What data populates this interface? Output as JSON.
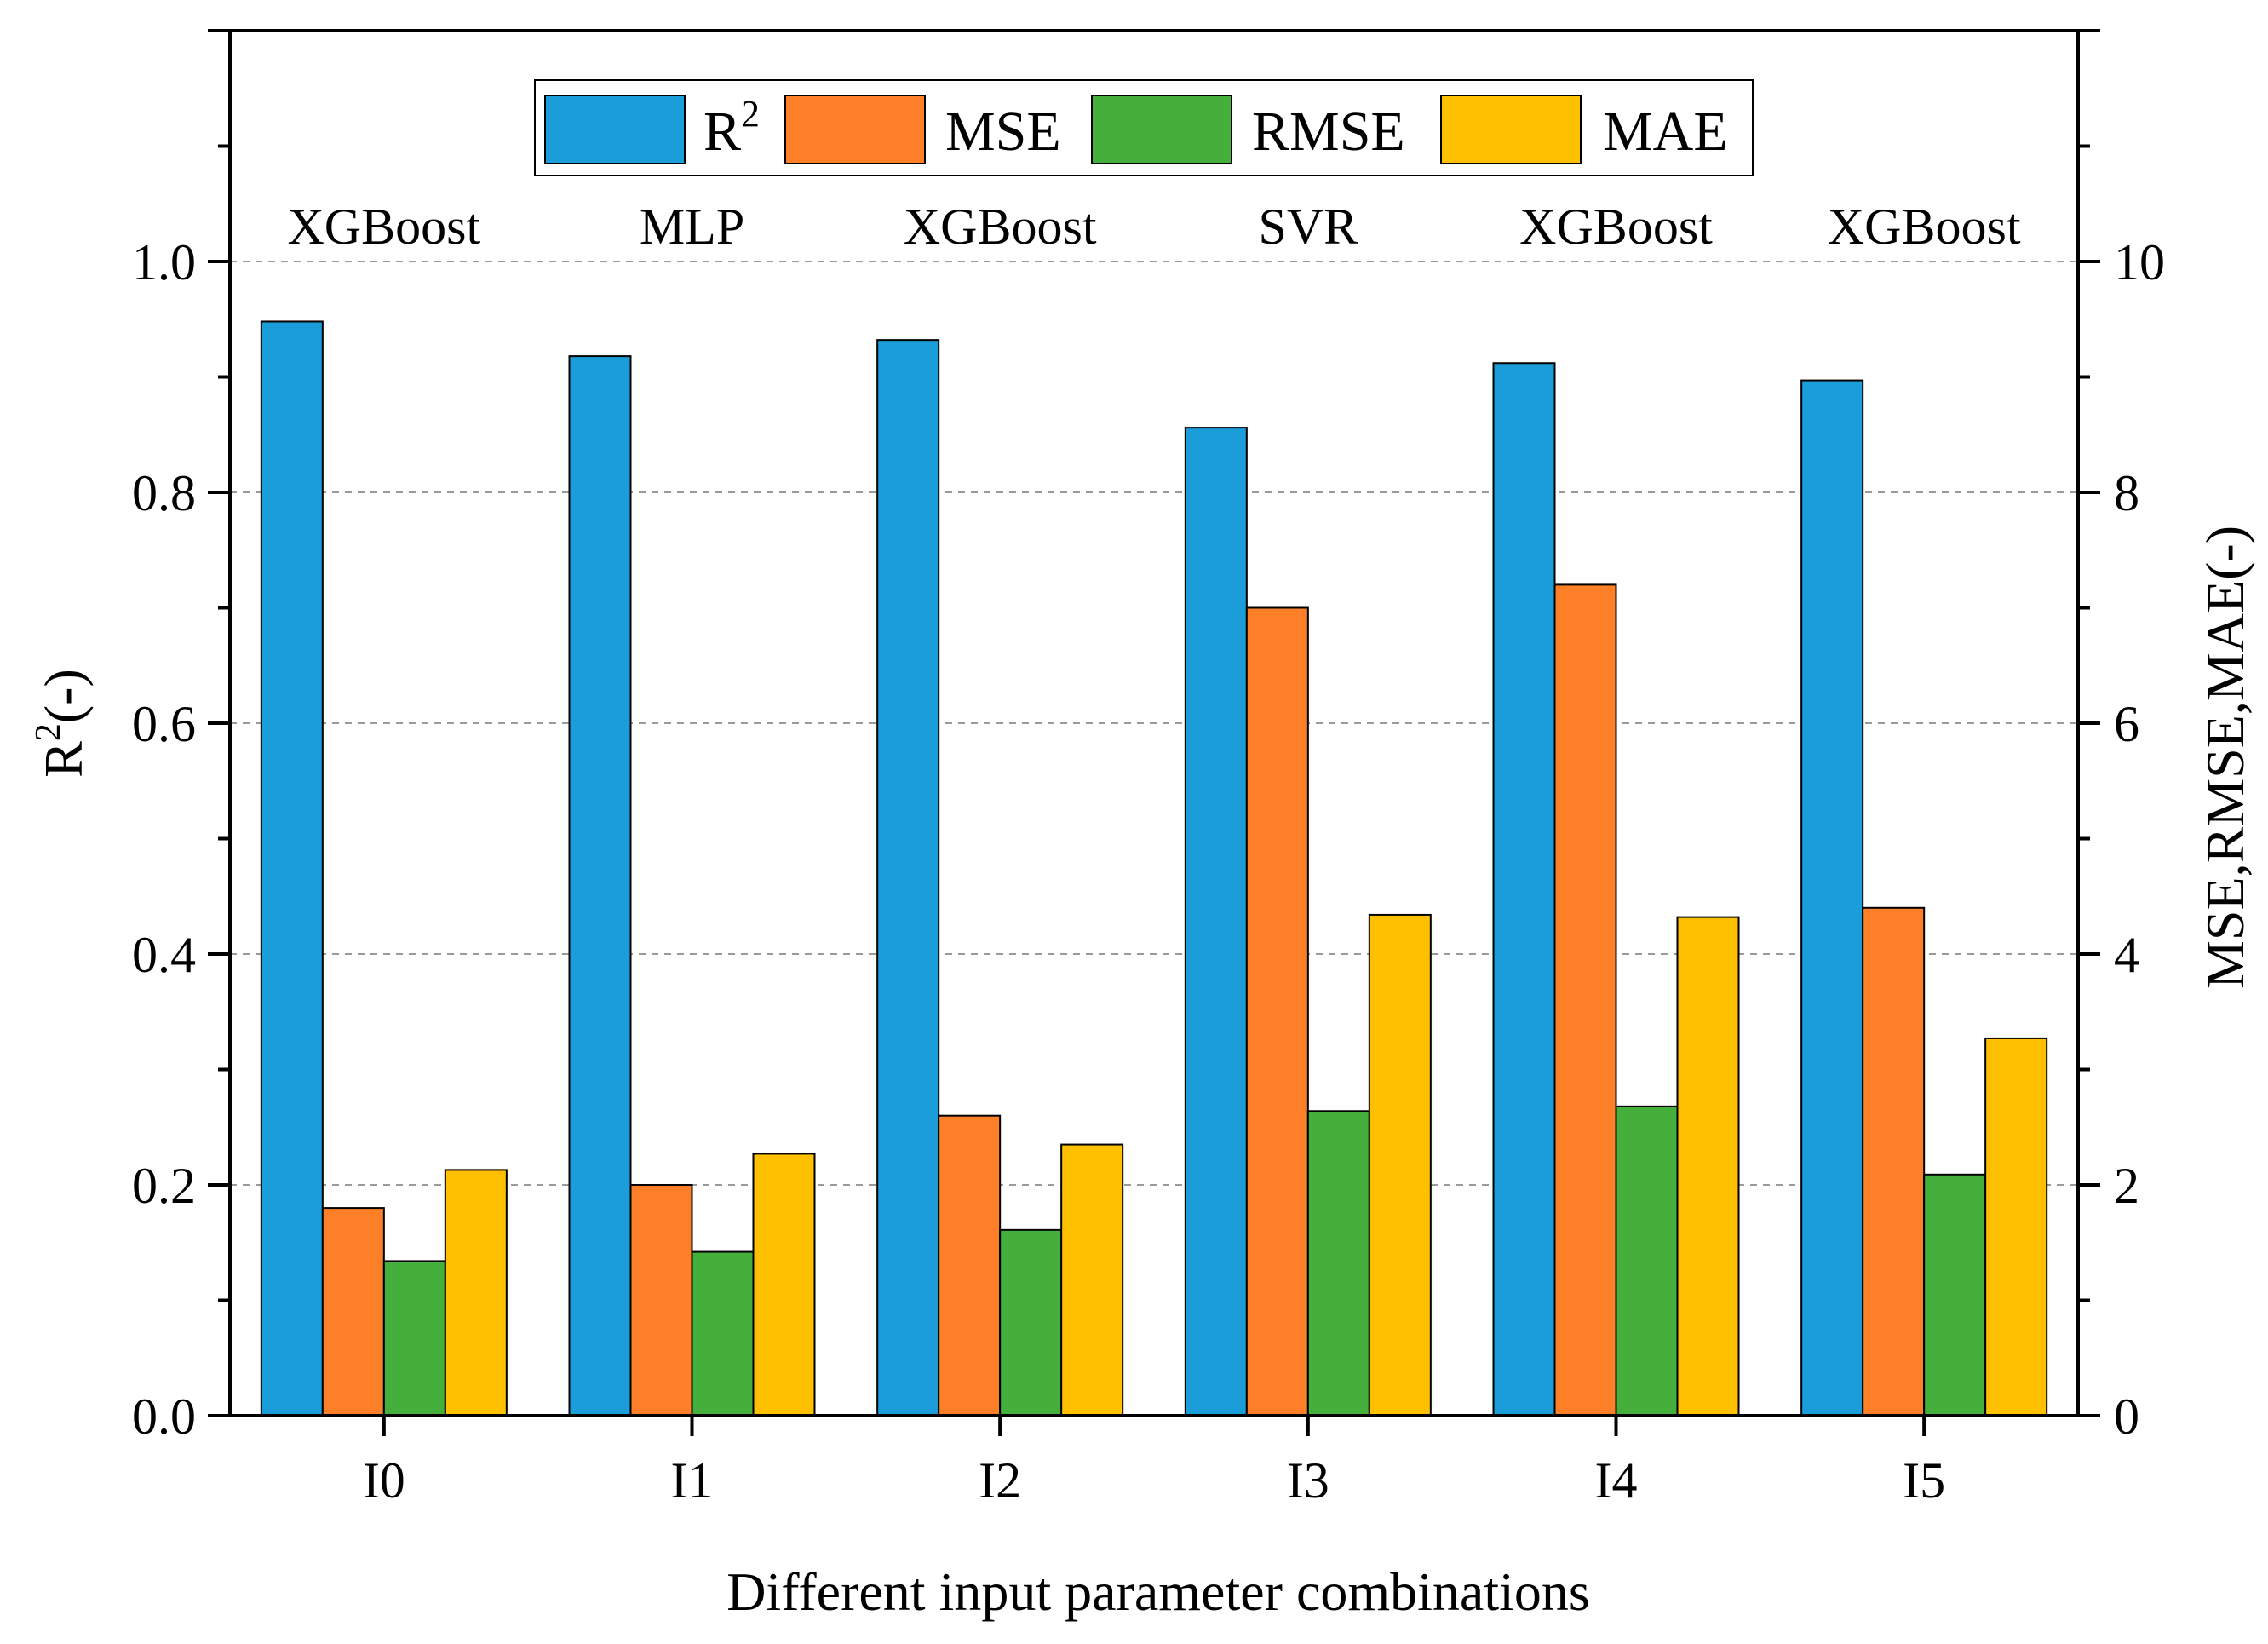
{
  "chart_data": {
    "type": "bar",
    "categories": [
      "I0",
      "I1",
      "I2",
      "I3",
      "I4",
      "I5"
    ],
    "model_labels": [
      "XGBoost",
      "MLP",
      "XGBoost",
      "SVR",
      "XGBoost",
      "XGBoost"
    ],
    "series": [
      {
        "name": "R",
        "superscript": "2",
        "axis": "left",
        "color": "#1B9DD9",
        "values": [
          0.948,
          0.918,
          0.932,
          0.856,
          0.912,
          0.897
        ]
      },
      {
        "name": "MSE",
        "axis": "right",
        "color": "#FD7F28",
        "values": [
          1.8,
          2.0,
          2.6,
          7.0,
          7.2,
          4.4
        ]
      },
      {
        "name": "RMSE",
        "axis": "right",
        "color": "#45AF3C",
        "values": [
          1.34,
          1.42,
          1.61,
          2.64,
          2.68,
          2.09
        ]
      },
      {
        "name": "MAE",
        "axis": "right",
        "color": "#FEC000",
        "values": [
          2.13,
          2.27,
          2.35,
          4.34,
          4.32,
          3.27
        ]
      }
    ],
    "xlabel": "Different input parameter combinations",
    "ylabel_left": {
      "base": "R",
      "sup": "2",
      "suffix": "(-)"
    },
    "ylabel_right": "MSE,RMSE,MAE(-)",
    "ylim_left": [
      0,
      1.2
    ],
    "ylim_right": [
      0,
      12
    ],
    "left_ticks": [
      "0.0",
      "0.2",
      "0.4",
      "0.6",
      "0.8",
      "1.0"
    ],
    "right_ticks": [
      "0",
      "2",
      "4",
      "6",
      "8",
      "10"
    ],
    "grid": true,
    "legend_position": "top-center"
  }
}
